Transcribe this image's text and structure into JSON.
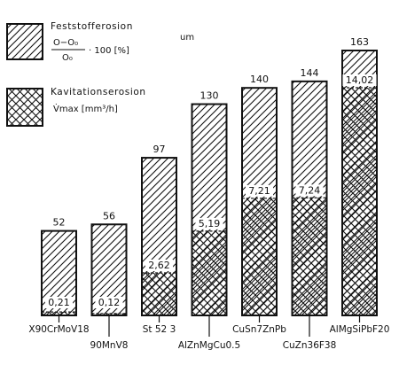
{
  "chart_data": {
    "type": "bar",
    "stacked": "overlay",
    "grid": false,
    "legend_position": "top-left",
    "categories": [
      "X90CrMoV18",
      "90MnV8",
      "St 52 3",
      "AlZnMgCu0.5",
      "CuSn7ZnPb",
      "CuZn36F38",
      "AlMgSiPbF20"
    ],
    "series": [
      {
        "name": "Feststofferosion",
        "formula_num": "O−O₀",
        "formula_den": "O₀",
        "formula_tail": "· 100 [%]",
        "unit": "um",
        "values": [
          52,
          56,
          97,
          130,
          140,
          144,
          163
        ],
        "labels": [
          "52",
          "56",
          "97",
          "130",
          "140",
          "144",
          "163"
        ]
      },
      {
        "name": "Kavitationserosion",
        "formula": "V̇max [mm³/h]",
        "values": [
          0.21,
          0.12,
          2.62,
          5.19,
          7.21,
          7.24,
          14.02
        ],
        "labels": [
          "0,21",
          "0,12",
          "2,62",
          "5,19",
          "7,21",
          "7,24",
          "14,02"
        ]
      }
    ]
  }
}
